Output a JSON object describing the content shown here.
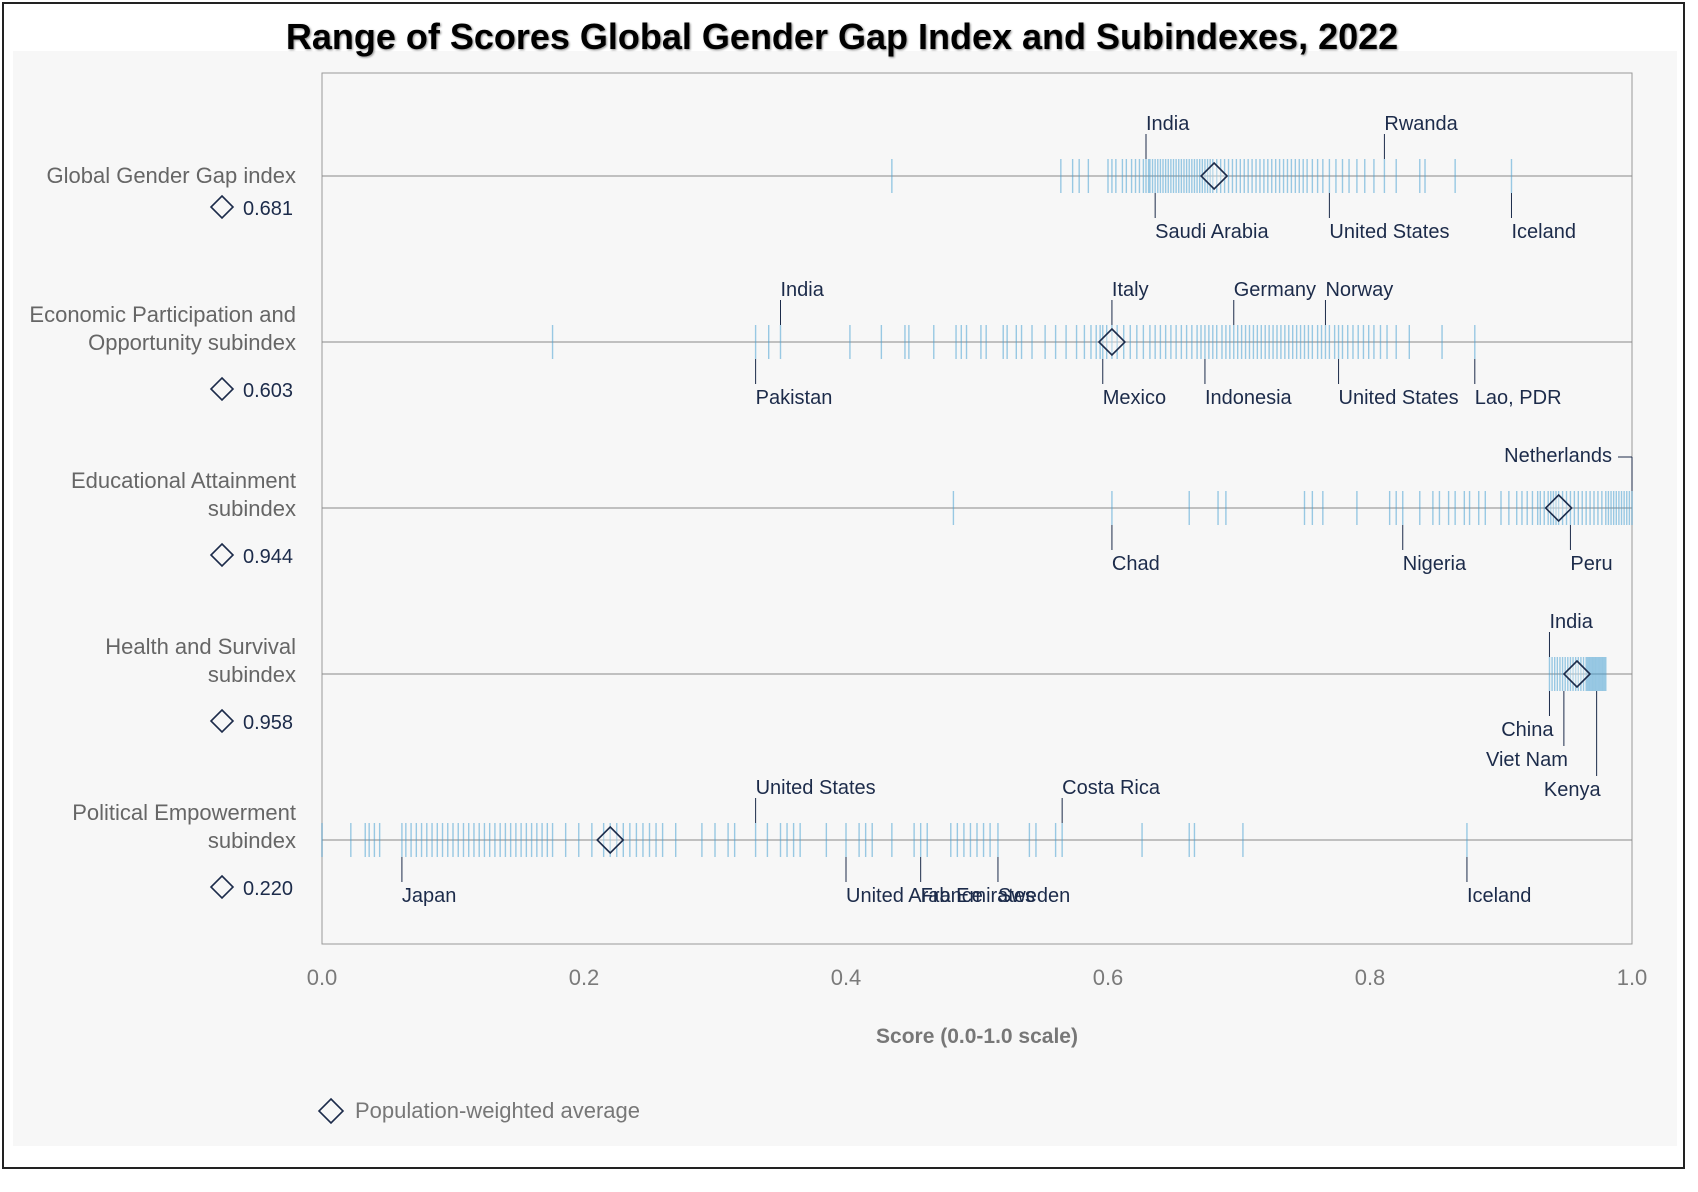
{
  "chart_data": {
    "type": "strip",
    "title": "Range of Scores Global Gender Gap Index and Subindexes, 2022",
    "xlabel": "Score (0.0-1.0 scale)",
    "xlim": [
      0.0,
      1.0
    ],
    "xticks": [
      "0.0",
      "0.2",
      "0.4",
      "0.6",
      "0.8",
      "1.0"
    ],
    "legend": {
      "label": "Population-weighted average",
      "marker": "diamond",
      "position": "bottom-left"
    },
    "colors": {
      "tick": "#4aa3d4",
      "avg_marker": "#1c2b4a",
      "axis": "#888888",
      "label": "#1c2b4a",
      "row_label": "#666666"
    },
    "rows": [
      {
        "name": "Global Gender Gap index",
        "name_lines": [
          "Global Gender Gap index"
        ],
        "average": 0.681,
        "average_label": "0.681",
        "annotations": [
          {
            "country": "India",
            "value": 0.629,
            "side": "above"
          },
          {
            "country": "Rwanda",
            "value": 0.811,
            "side": "above"
          },
          {
            "country": "Saudi Arabia",
            "value": 0.636,
            "side": "below"
          },
          {
            "country": "United States",
            "value": 0.769,
            "side": "below"
          },
          {
            "country": "Iceland",
            "value": 0.908,
            "side": "below"
          }
        ],
        "scores": [
          0.435,
          0.564,
          0.573,
          0.578,
          0.585,
          0.6,
          0.603,
          0.606,
          0.611,
          0.614,
          0.618,
          0.621,
          0.624,
          0.627,
          0.629,
          0.631,
          0.632,
          0.634,
          0.636,
          0.638,
          0.64,
          0.642,
          0.644,
          0.646,
          0.648,
          0.65,
          0.652,
          0.654,
          0.656,
          0.658,
          0.66,
          0.662,
          0.664,
          0.666,
          0.668,
          0.67,
          0.672,
          0.674,
          0.676,
          0.678,
          0.68,
          0.683,
          0.686,
          0.689,
          0.692,
          0.695,
          0.698,
          0.701,
          0.704,
          0.707,
          0.71,
          0.713,
          0.716,
          0.719,
          0.722,
          0.725,
          0.728,
          0.731,
          0.734,
          0.737,
          0.74,
          0.743,
          0.746,
          0.749,
          0.752,
          0.756,
          0.76,
          0.764,
          0.769,
          0.774,
          0.779,
          0.784,
          0.79,
          0.796,
          0.803,
          0.811,
          0.82,
          0.838,
          0.842,
          0.865,
          0.908
        ]
      },
      {
        "name": "Economic Participation and Opportunity subindex",
        "name_lines": [
          "Economic Participation and",
          "Opportunity subindex"
        ],
        "average": 0.603,
        "average_label": "0.603",
        "annotations": [
          {
            "country": "India",
            "value": 0.35,
            "side": "above"
          },
          {
            "country": "Italy",
            "value": 0.603,
            "side": "above"
          },
          {
            "country": "Germany",
            "value": 0.696,
            "side": "above"
          },
          {
            "country": "Norway",
            "value": 0.766,
            "side": "above"
          },
          {
            "country": "Pakistan",
            "value": 0.331,
            "side": "below"
          },
          {
            "country": "Mexico",
            "value": 0.596,
            "side": "below"
          },
          {
            "country": "Indonesia",
            "value": 0.674,
            "side": "below"
          },
          {
            "country": "United States",
            "value": 0.776,
            "side": "below"
          },
          {
            "country": "Lao, PDR",
            "value": 0.88,
            "side": "below"
          }
        ],
        "scores": [
          0.176,
          0.331,
          0.341,
          0.35,
          0.403,
          0.427,
          0.445,
          0.448,
          0.467,
          0.484,
          0.488,
          0.492,
          0.503,
          0.507,
          0.52,
          0.523,
          0.53,
          0.534,
          0.542,
          0.552,
          0.56,
          0.568,
          0.576,
          0.582,
          0.587,
          0.591,
          0.594,
          0.596,
          0.599,
          0.603,
          0.607,
          0.612,
          0.617,
          0.622,
          0.627,
          0.632,
          0.636,
          0.64,
          0.644,
          0.648,
          0.652,
          0.656,
          0.66,
          0.664,
          0.668,
          0.671,
          0.674,
          0.677,
          0.68,
          0.683,
          0.687,
          0.69,
          0.693,
          0.696,
          0.699,
          0.702,
          0.705,
          0.708,
          0.711,
          0.714,
          0.717,
          0.72,
          0.723,
          0.726,
          0.729,
          0.732,
          0.735,
          0.738,
          0.741,
          0.744,
          0.747,
          0.75,
          0.753,
          0.756,
          0.76,
          0.763,
          0.766,
          0.769,
          0.773,
          0.776,
          0.779,
          0.783,
          0.787,
          0.791,
          0.795,
          0.799,
          0.803,
          0.808,
          0.813,
          0.82,
          0.83,
          0.855,
          0.88
        ]
      },
      {
        "name": "Educational Attainment subindex",
        "name_lines": [
          "Educational Attainment",
          "subindex"
        ],
        "average": 0.944,
        "average_label": "0.944",
        "annotations": [
          {
            "country": "Netherlands",
            "value": 1.0,
            "side": "above"
          },
          {
            "country": "Chad",
            "value": 0.603,
            "side": "below"
          },
          {
            "country": "Nigeria",
            "value": 0.825,
            "side": "below"
          },
          {
            "country": "Peru",
            "value": 0.953,
            "side": "below"
          }
        ],
        "scores": [
          0.482,
          0.603,
          0.662,
          0.684,
          0.69,
          0.75,
          0.756,
          0.764,
          0.79,
          0.815,
          0.82,
          0.825,
          0.838,
          0.848,
          0.853,
          0.86,
          0.865,
          0.872,
          0.876,
          0.883,
          0.888,
          0.9,
          0.906,
          0.912,
          0.916,
          0.92,
          0.924,
          0.928,
          0.93,
          0.933,
          0.936,
          0.938,
          0.94,
          0.942,
          0.944,
          0.947,
          0.95,
          0.953,
          0.956,
          0.959,
          0.962,
          0.965,
          0.968,
          0.971,
          0.974,
          0.977,
          0.98,
          0.982,
          0.984,
          0.986,
          0.988,
          0.99,
          0.992,
          0.994,
          0.996,
          0.998,
          1.0
        ]
      },
      {
        "name": "Health and Survival subindex",
        "name_lines": [
          "Health and Survival",
          "subindex"
        ],
        "average": 0.958,
        "average_label": "0.958",
        "annotations": [
          {
            "country": "India",
            "value": 0.937,
            "side": "above"
          },
          {
            "country": "China",
            "value": 0.937,
            "side": "below"
          },
          {
            "country": "Viet Nam",
            "value": 0.948,
            "side": "below"
          },
          {
            "country": "Kenya",
            "value": 0.973,
            "side": "below"
          }
        ],
        "scores": [
          0.937,
          0.939,
          0.941,
          0.943,
          0.945,
          0.947,
          0.949,
          0.951,
          0.953,
          0.955,
          0.957,
          0.959,
          0.961,
          0.963,
          0.965,
          0.966,
          0.967,
          0.968,
          0.969,
          0.97,
          0.971,
          0.972,
          0.973,
          0.974,
          0.975,
          0.976,
          0.977,
          0.978,
          0.979,
          0.98
        ]
      },
      {
        "name": "Political Empowerment subindex",
        "name_lines": [
          "Political Empowerment",
          "subindex"
        ],
        "average": 0.22,
        "average_label": "0.220",
        "annotations": [
          {
            "country": "United States",
            "value": 0.331,
            "side": "above"
          },
          {
            "country": "Costa Rica",
            "value": 0.565,
            "side": "above"
          },
          {
            "country": "Japan",
            "value": 0.061,
            "side": "below"
          },
          {
            "country": "United Arab Emirates",
            "value": 0.4,
            "side": "below"
          },
          {
            "country": "France",
            "value": 0.457,
            "side": "below"
          },
          {
            "country": "Sweden",
            "value": 0.516,
            "side": "below"
          },
          {
            "country": "Iceland",
            "value": 0.874,
            "side": "below"
          }
        ],
        "scores": [
          0.0,
          0.022,
          0.033,
          0.036,
          0.04,
          0.044,
          0.061,
          0.064,
          0.068,
          0.072,
          0.076,
          0.08,
          0.084,
          0.088,
          0.092,
          0.096,
          0.1,
          0.104,
          0.108,
          0.112,
          0.116,
          0.12,
          0.124,
          0.128,
          0.132,
          0.136,
          0.14,
          0.144,
          0.148,
          0.152,
          0.156,
          0.16,
          0.164,
          0.168,
          0.172,
          0.176,
          0.186,
          0.196,
          0.206,
          0.215,
          0.22,
          0.225,
          0.23,
          0.235,
          0.24,
          0.245,
          0.25,
          0.255,
          0.26,
          0.27,
          0.29,
          0.3,
          0.31,
          0.315,
          0.331,
          0.34,
          0.35,
          0.355,
          0.36,
          0.365,
          0.385,
          0.4,
          0.41,
          0.415,
          0.42,
          0.435,
          0.452,
          0.457,
          0.462,
          0.48,
          0.485,
          0.49,
          0.495,
          0.5,
          0.505,
          0.51,
          0.516,
          0.54,
          0.545,
          0.56,
          0.565,
          0.626,
          0.662,
          0.666,
          0.703,
          0.874
        ]
      }
    ]
  }
}
